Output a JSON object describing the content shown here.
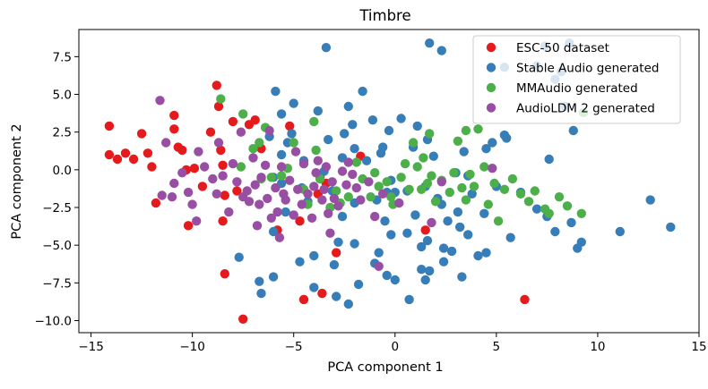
{
  "chart_data": {
    "type": "scatter",
    "title": "Timbre",
    "xlabel": "PCA component 1",
    "ylabel": "PCA component 2",
    "xlim": [
      -15.6,
      15.0
    ],
    "ylim": [
      -10.8,
      9.3
    ],
    "xticks": [
      -15,
      -10,
      -5,
      0,
      5,
      10,
      15
    ],
    "yticks": [
      -10.0,
      -7.5,
      -5.0,
      -2.5,
      0.0,
      2.5,
      5.0,
      7.5
    ],
    "xtick_labels": [
      "−15",
      "−10",
      "−5",
      "0",
      "5",
      "10",
      "15"
    ],
    "ytick_labels": [
      "−10.0",
      "−7.5",
      "−5.0",
      "−2.5",
      "0.0",
      "2.5",
      "5.0",
      "7.5"
    ],
    "grid": false,
    "legend_position": "top-right",
    "series": [
      {
        "name": "ESC-50 dataset",
        "color": "#e41a1c",
        "points": [
          [
            -14.1,
            2.9
          ],
          [
            -14.1,
            1.0
          ],
          [
            -13.7,
            0.7
          ],
          [
            -13.3,
            1.1
          ],
          [
            -12.9,
            0.7
          ],
          [
            -12.5,
            2.4
          ],
          [
            -12.2,
            1.1
          ],
          [
            -12.0,
            0.2
          ],
          [
            -11.8,
            -2.2
          ],
          [
            -10.9,
            3.6
          ],
          [
            -10.9,
            2.7
          ],
          [
            -10.7,
            1.5
          ],
          [
            -10.5,
            1.3
          ],
          [
            -10.3,
            0.0
          ],
          [
            -10.2,
            -3.7
          ],
          [
            -9.9,
            0.1
          ],
          [
            -9.5,
            -1.1
          ],
          [
            -9.1,
            2.5
          ],
          [
            -8.8,
            5.6
          ],
          [
            -8.7,
            4.2
          ],
          [
            -8.6,
            1.3
          ],
          [
            -8.5,
            0.3
          ],
          [
            -8.4,
            -1.7
          ],
          [
            -8.5,
            -3.4
          ],
          [
            -8.4,
            -6.9
          ],
          [
            -8.0,
            3.2
          ],
          [
            -7.8,
            -1.4
          ],
          [
            -7.5,
            -9.9
          ],
          [
            -7.2,
            3.0
          ],
          [
            -6.9,
            3.3
          ],
          [
            -6.6,
            1.4
          ],
          [
            -5.8,
            -4.0
          ],
          [
            -5.2,
            2.9
          ],
          [
            -4.7,
            -3.4
          ],
          [
            -4.5,
            -8.6
          ],
          [
            -3.8,
            -1.6
          ],
          [
            -3.7,
            -0.5
          ],
          [
            -3.6,
            -8.2
          ],
          [
            -3.4,
            -0.9
          ],
          [
            -2.9,
            -5.5
          ],
          [
            -1.7,
            0.9
          ],
          [
            1.5,
            -4.0
          ],
          [
            6.4,
            -8.6
          ]
        ]
      },
      {
        "name": "Stable Audio generated",
        "color": "#377eb8",
        "points": [
          [
            -7.7,
            -5.8
          ],
          [
            -6.7,
            -7.4
          ],
          [
            -6.6,
            -8.2
          ],
          [
            -6.2,
            2.2
          ],
          [
            -6.0,
            -0.5
          ],
          [
            -6.0,
            -4.1
          ],
          [
            -6.0,
            -7.1
          ],
          [
            -5.9,
            5.2
          ],
          [
            -5.6,
            3.7
          ],
          [
            -5.6,
            1.0
          ],
          [
            -5.6,
            -0.9
          ],
          [
            -5.4,
            -2.8
          ],
          [
            -5.3,
            1.8
          ],
          [
            -5.1,
            2.4
          ],
          [
            -5.0,
            4.4
          ],
          [
            -4.7,
            -6.1
          ],
          [
            -4.6,
            -1.2
          ],
          [
            -4.5,
            0.6
          ],
          [
            -4.3,
            -2.1
          ],
          [
            -4.0,
            -5.7
          ],
          [
            -4.0,
            -7.8
          ],
          [
            -3.8,
            3.9
          ],
          [
            -3.5,
            -0.1
          ],
          [
            -3.4,
            8.1
          ],
          [
            -3.3,
            2.0
          ],
          [
            -3.1,
            -1.4
          ],
          [
            -3.0,
            -6.3
          ],
          [
            -2.9,
            -8.4
          ],
          [
            -2.8,
            -4.8
          ],
          [
            -2.6,
            0.8
          ],
          [
            -2.6,
            -3.1
          ],
          [
            -2.5,
            2.4
          ],
          [
            -2.3,
            4.2
          ],
          [
            -2.3,
            -8.9
          ],
          [
            -2.1,
            3.0
          ],
          [
            -2.0,
            1.4
          ],
          [
            -2.0,
            -2.2
          ],
          [
            -2.0,
            -4.9
          ],
          [
            -1.8,
            -7.6
          ],
          [
            -1.6,
            5.2
          ],
          [
            -1.4,
            0.6
          ],
          [
            -1.1,
            3.3
          ],
          [
            -1.0,
            -6.2
          ],
          [
            -0.9,
            -2.0
          ],
          [
            -0.8,
            -5.5
          ],
          [
            -0.7,
            1.1
          ],
          [
            -0.6,
            1.5
          ],
          [
            -0.5,
            -3.4
          ],
          [
            -0.4,
            -7.0
          ],
          [
            -0.4,
            -1.5
          ],
          [
            -0.3,
            2.6
          ],
          [
            -0.2,
            -0.7
          ],
          [
            -0.2,
            -4.3
          ],
          [
            0.0,
            -7.3
          ],
          [
            0.0,
            -1.5
          ],
          [
            0.3,
            3.4
          ],
          [
            0.6,
            -1.4
          ],
          [
            0.6,
            -4.2
          ],
          [
            0.7,
            -8.6
          ],
          [
            0.9,
            1.5
          ],
          [
            1.0,
            -3.0
          ],
          [
            1.1,
            2.9
          ],
          [
            1.3,
            -5.1
          ],
          [
            1.3,
            -6.6
          ],
          [
            1.5,
            -1.1
          ],
          [
            1.5,
            -7.3
          ],
          [
            1.6,
            2.0
          ],
          [
            1.6,
            -4.7
          ],
          [
            1.7,
            8.4
          ],
          [
            1.7,
            -6.7
          ],
          [
            1.9,
            0.9
          ],
          [
            2.1,
            -1.9
          ],
          [
            2.3,
            7.9
          ],
          [
            2.3,
            -2.3
          ],
          [
            2.4,
            -5.2
          ],
          [
            2.4,
            -6.1
          ],
          [
            2.6,
            -3.4
          ],
          [
            2.8,
            -5.4
          ],
          [
            3.0,
            -0.2
          ],
          [
            3.1,
            -2.8
          ],
          [
            3.2,
            -3.8
          ],
          [
            3.3,
            -7.1
          ],
          [
            3.4,
            1.2
          ],
          [
            3.6,
            -0.4
          ],
          [
            3.6,
            -4.3
          ],
          [
            3.8,
            -1.6
          ],
          [
            4.1,
            -5.7
          ],
          [
            4.4,
            -2.9
          ],
          [
            4.5,
            1.4
          ],
          [
            4.5,
            -5.5
          ],
          [
            4.8,
            1.8
          ],
          [
            5.0,
            -1.1
          ],
          [
            5.4,
            6.8
          ],
          [
            5.4,
            2.3
          ],
          [
            5.5,
            2.1
          ],
          [
            5.7,
            -4.5
          ],
          [
            6.2,
            -1.5
          ],
          [
            7.0,
            -2.6
          ],
          [
            7.0,
            6.9
          ],
          [
            7.4,
            8.2
          ],
          [
            7.6,
            0.7
          ],
          [
            7.5,
            -3.1
          ],
          [
            7.9,
            6.0
          ],
          [
            7.9,
            -4.1
          ],
          [
            8.2,
            6.5
          ],
          [
            8.4,
            4.2
          ],
          [
            8.6,
            8.4
          ],
          [
            8.7,
            -3.5
          ],
          [
            8.8,
            2.6
          ],
          [
            9.0,
            -5.2
          ],
          [
            9.2,
            -4.8
          ],
          [
            11.1,
            -4.1
          ],
          [
            12.6,
            -2.0
          ],
          [
            13.6,
            -3.8
          ]
        ]
      },
      {
        "name": "MMAudio generated",
        "color": "#4daf4a",
        "points": [
          [
            -8.6,
            4.7
          ],
          [
            -7.6,
            0.2
          ],
          [
            -7.5,
            3.7
          ],
          [
            -7.0,
            1.4
          ],
          [
            -6.7,
            1.8
          ],
          [
            -6.6,
            -0.6
          ],
          [
            -6.4,
            2.8
          ],
          [
            -6.1,
            -0.5
          ],
          [
            -5.6,
            -0.4
          ],
          [
            -5.3,
            0.1
          ],
          [
            -5.0,
            1.8
          ],
          [
            -4.5,
            -1.3
          ],
          [
            -4.3,
            -2.3
          ],
          [
            -4.0,
            3.2
          ],
          [
            -3.9,
            1.3
          ],
          [
            -3.7,
            -0.6
          ],
          [
            -3.2,
            -2.5
          ],
          [
            -2.9,
            -1.4
          ],
          [
            -2.7,
            -2.2
          ],
          [
            -2.3,
            -1.8
          ],
          [
            -1.9,
            0.5
          ],
          [
            -1.6,
            -0.6
          ],
          [
            -1.2,
            -1.8
          ],
          [
            -1.0,
            -0.2
          ],
          [
            -0.8,
            -1.1
          ],
          [
            -0.4,
            -0.8
          ],
          [
            -0.2,
            -1.8
          ],
          [
            -0.1,
            -2.3
          ],
          [
            0.3,
            -0.5
          ],
          [
            0.5,
            0.4
          ],
          [
            0.7,
            -1.3
          ],
          [
            0.9,
            1.8
          ],
          [
            1.1,
            0.2
          ],
          [
            1.3,
            -1.3
          ],
          [
            1.4,
            0.8
          ],
          [
            1.6,
            -0.9
          ],
          [
            1.7,
            2.4
          ],
          [
            1.8,
            -0.4
          ],
          [
            2.0,
            -2.1
          ],
          [
            2.3,
            -0.7
          ],
          [
            2.7,
            -1.5
          ],
          [
            2.9,
            -0.2
          ],
          [
            3.1,
            1.9
          ],
          [
            3.3,
            -1.2
          ],
          [
            3.5,
            2.6
          ],
          [
            3.5,
            -2.0
          ],
          [
            3.7,
            -0.3
          ],
          [
            3.9,
            -1.1
          ],
          [
            4.1,
            2.7
          ],
          [
            4.4,
            0.2
          ],
          [
            4.6,
            -2.3
          ],
          [
            4.9,
            -0.9
          ],
          [
            5.1,
            -3.4
          ],
          [
            5.4,
            -1.3
          ],
          [
            5.8,
            -0.6
          ],
          [
            6.2,
            -1.6
          ],
          [
            6.6,
            -2.1
          ],
          [
            6.9,
            -1.4
          ],
          [
            7.4,
            -2.6
          ],
          [
            7.6,
            -2.9
          ],
          [
            8.1,
            -1.8
          ],
          [
            8.5,
            -2.4
          ],
          [
            9.2,
            -2.9
          ],
          [
            9.3,
            3.8
          ]
        ]
      },
      {
        "name": "AudioLDM 2 generated",
        "color": "#984ea3",
        "points": [
          [
            -11.6,
            4.6
          ],
          [
            -11.5,
            -1.7
          ],
          [
            -11.3,
            1.8
          ],
          [
            -11.0,
            -1.8
          ],
          [
            -10.9,
            -0.9
          ],
          [
            -10.5,
            -0.2
          ],
          [
            -10.2,
            -1.5
          ],
          [
            -10.0,
            -2.3
          ],
          [
            -9.8,
            -3.4
          ],
          [
            -9.7,
            1.2
          ],
          [
            -9.4,
            0.2
          ],
          [
            -9.0,
            -0.6
          ],
          [
            -8.8,
            -1.6
          ],
          [
            -8.7,
            1.8
          ],
          [
            -8.5,
            -0.4
          ],
          [
            -8.2,
            -2.8
          ],
          [
            -8.0,
            0.4
          ],
          [
            -7.8,
            -0.8
          ],
          [
            -7.6,
            2.5
          ],
          [
            -7.5,
            -1.8
          ],
          [
            -7.3,
            -1.4
          ],
          [
            -7.2,
            -2.1
          ],
          [
            -7.0,
            0.8
          ],
          [
            -6.9,
            -1.0
          ],
          [
            -6.8,
            -3.7
          ],
          [
            -6.7,
            -2.3
          ],
          [
            -6.6,
            -0.5
          ],
          [
            -6.4,
            0.3
          ],
          [
            -6.3,
            -1.9
          ],
          [
            -6.2,
            2.6
          ],
          [
            -6.1,
            -3.2
          ],
          [
            -5.9,
            -1.2
          ],
          [
            -5.8,
            -2.8
          ],
          [
            -5.7,
            -4.5
          ],
          [
            -5.6,
            0.2
          ],
          [
            -5.5,
            -1.6
          ],
          [
            -5.4,
            -2.0
          ],
          [
            -5.2,
            -0.7
          ],
          [
            -5.0,
            -3.0
          ],
          [
            -4.9,
            1.2
          ],
          [
            -4.8,
            -1.3
          ],
          [
            -4.6,
            -2.3
          ],
          [
            -4.5,
            0.4
          ],
          [
            -4.3,
            -1.6
          ],
          [
            -4.1,
            -3.2
          ],
          [
            -4.0,
            -1.1
          ],
          [
            -3.9,
            -0.2
          ],
          [
            -3.8,
            0.6
          ],
          [
            -3.6,
            -2.0
          ],
          [
            -3.5,
            -1.3
          ],
          [
            -3.4,
            0.2
          ],
          [
            -3.3,
            -2.9
          ],
          [
            -3.2,
            -4.2
          ],
          [
            -3.1,
            -0.8
          ],
          [
            -3.0,
            -1.9
          ],
          [
            -2.8,
            -2.4
          ],
          [
            -2.6,
            -0.1
          ],
          [
            -2.4,
            -1.0
          ],
          [
            -2.3,
            0.5
          ],
          [
            -2.1,
            -0.3
          ],
          [
            -1.9,
            -1.2
          ],
          [
            -1.7,
            -2.0
          ],
          [
            -1.3,
            -0.8
          ],
          [
            -1.0,
            -3.1
          ],
          [
            -0.8,
            -6.4
          ],
          [
            -0.6,
            -1.6
          ],
          [
            0.2,
            -2.2
          ],
          [
            1.8,
            -3.5
          ],
          [
            2.3,
            -0.8
          ],
          [
            4.8,
            0.1
          ]
        ]
      }
    ]
  }
}
